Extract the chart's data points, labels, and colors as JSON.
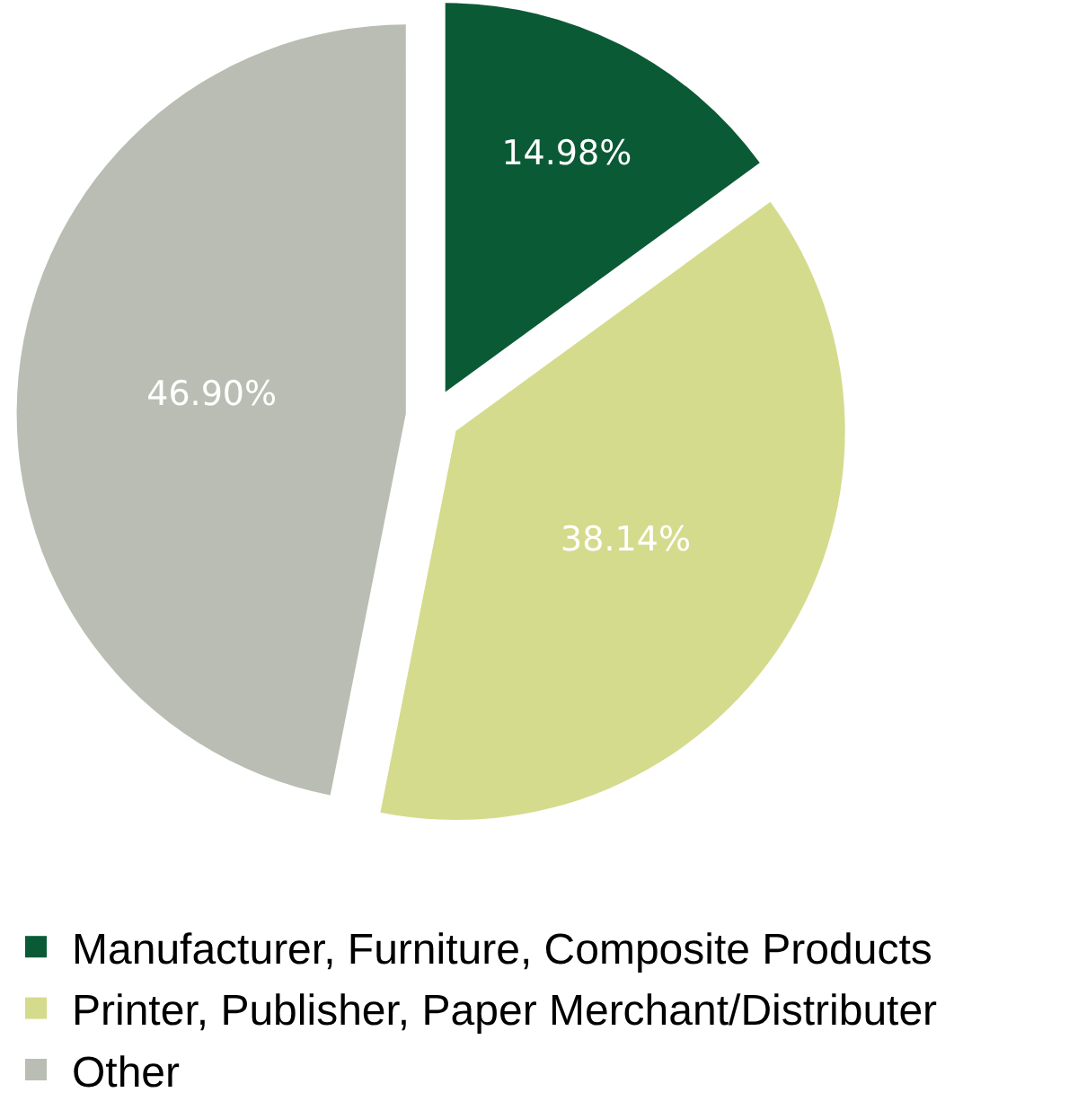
{
  "chart_data": {
    "type": "pie",
    "categories": [
      "Manufacturer, Furniture, Composite Products",
      "Printer, Publisher, Paper Merchant/Distributer",
      "Other"
    ],
    "values": [
      14.98,
      38.14,
      46.9
    ],
    "colors": [
      "#0b5a36",
      "#d5db8c",
      "#b9bdb3"
    ],
    "value_labels": [
      "14.98%",
      "38.14%",
      "46.90%"
    ],
    "legend": "bottom"
  }
}
